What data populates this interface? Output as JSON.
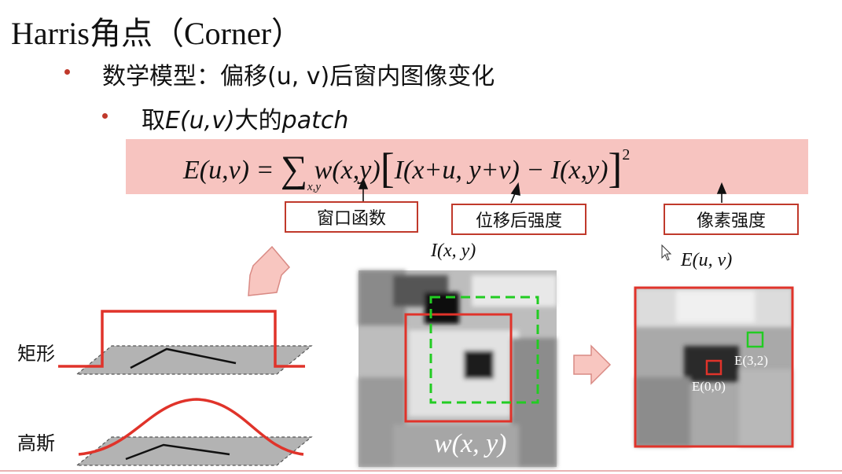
{
  "slide": {
    "title": "Harris角点（Corner）",
    "bullets": [
      {
        "text": "数学模型：偏移(u, v)后窗内图像变化"
      },
      {
        "prefix": "取",
        "em1": "E(u,v)",
        "mid": "大的",
        "em2": "patch"
      }
    ]
  },
  "formula": {
    "lhs": "E(u,v) =",
    "sigma": "∑",
    "sigma_sub": "x,y",
    "w_term": "w(x,y)",
    "inner": "I(x+u, y+v) − I(x,y)",
    "power": "2"
  },
  "annotations": {
    "window_fn": "窗口函数",
    "shifted_intensity": "位移后强度",
    "pixel_intensity": "像素强度"
  },
  "figure": {
    "image_label": "I(x, y)",
    "window_label": "w(x, y)",
    "energy_label": "E(u, v)",
    "e00": "E(0,0)",
    "e32": "E(3,2)",
    "rect_label": "矩形",
    "gauss_label": "高斯"
  },
  "colors": {
    "accent_red": "#e0332a",
    "formula_bg": "#f7c4c0",
    "dashed_green": "#22cc22",
    "arrow_fill": "#f8c6c0"
  }
}
